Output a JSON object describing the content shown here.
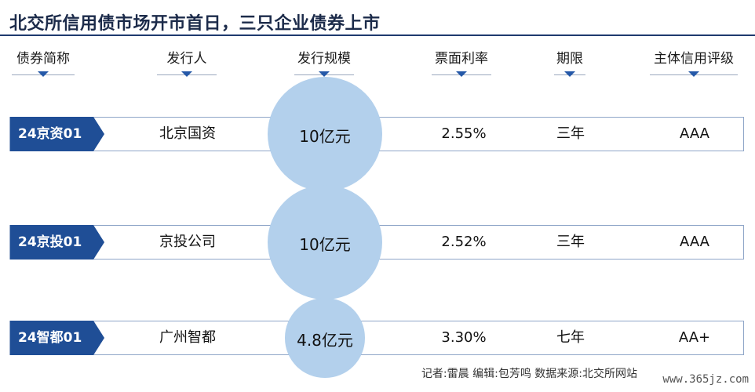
{
  "title": "北交所信用债市场开市首日，三只企业债券上市",
  "headers": [
    "债券简称",
    "发行人",
    "发行规模",
    "票面利率",
    "期限",
    "主体信用评级"
  ],
  "chart_data": {
    "type": "table",
    "columns": [
      "债券简称",
      "发行人",
      "发行规模",
      "票面利率",
      "期限",
      "主体信用评级"
    ],
    "rows": [
      {
        "name": "24京资01",
        "issuer": "北京国资",
        "size_label": "10亿元",
        "size": 10,
        "rate": "2.55%",
        "term": "三年",
        "rating": "AAA"
      },
      {
        "name": "24京投01",
        "issuer": "京投公司",
        "size_label": "10亿元",
        "size": 10,
        "rate": "2.52%",
        "term": "三年",
        "rating": "AAA"
      },
      {
        "name": "24智都01",
        "issuer": "广州智都",
        "size_label": "4.8亿元",
        "size": 4.8,
        "rate": "3.30%",
        "term": "七年",
        "rating": "AA+"
      }
    ],
    "size_unit": "亿元",
    "colors": {
      "tag": "#1f4e96",
      "bubble": "#b3d0ec",
      "accent": "#2458a8"
    }
  },
  "footer": "记者:雷晨   编辑:包芳鸣   数据来源:北交所网站",
  "watermark": "www.365jz.com"
}
